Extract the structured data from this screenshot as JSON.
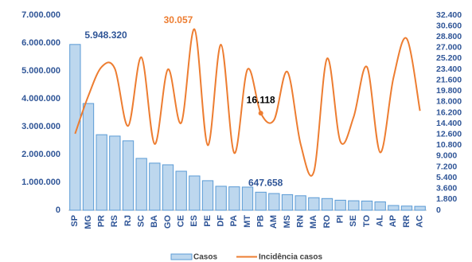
{
  "chart_data": {
    "type": "bar-line",
    "categories": [
      "SP",
      "MG",
      "PR",
      "RS",
      "RJ",
      "SC",
      "BA",
      "GO",
      "CE",
      "ES",
      "PE",
      "DF",
      "PA",
      "MT",
      "PB",
      "AM",
      "MS",
      "RN",
      "MA",
      "RO",
      "PI",
      "SE",
      "TO",
      "AL",
      "AP",
      "RR",
      "AC"
    ],
    "series": [
      {
        "name": "Casos",
        "type": "bar",
        "color": "#bdd7ee",
        "edgecolor": "#5b9bd5",
        "axis": "y",
        "values": [
          5948320,
          3830000,
          2710000,
          2660000,
          2490000,
          1860000,
          1690000,
          1630000,
          1400000,
          1230000,
          1060000,
          860000,
          840000,
          830000,
          647658,
          600000,
          560000,
          520000,
          450000,
          420000,
          360000,
          340000,
          330000,
          300000,
          170000,
          150000,
          140000
        ],
        "value_labels": [
          "5.948.320",
          null,
          null,
          null,
          null,
          null,
          null,
          null,
          null,
          null,
          null,
          null,
          null,
          null,
          "647.658",
          null,
          null,
          null,
          null,
          null,
          null,
          null,
          null,
          null,
          null,
          null,
          null
        ]
      },
      {
        "name": "Incidência casos",
        "type": "line",
        "color": "#ed7d31",
        "axis": "y2",
        "values": [
          12700,
          19000,
          23800,
          23500,
          14000,
          25400,
          11000,
          23400,
          14500,
          30057,
          10800,
          27500,
          9500,
          23400,
          16118,
          15000,
          23000,
          11000,
          6400,
          25200,
          11400,
          15500,
          23800,
          9600,
          22000,
          28500,
          16500
        ],
        "value_labels": [
          null,
          null,
          null,
          null,
          null,
          null,
          null,
          null,
          null,
          "30.057",
          null,
          null,
          null,
          null,
          "16.118",
          null,
          null,
          null,
          null,
          null,
          null,
          null,
          null,
          null,
          null,
          null,
          null
        ]
      }
    ],
    "ylim": [
      0,
      7000000
    ],
    "yticks": [
      0,
      {
        "value": 1000000,
        "label": "1.000.000"
      },
      {
        "value": 2000000,
        "label": "2.000.000"
      },
      {
        "value": 3000000,
        "label": "3.000.000"
      },
      {
        "value": 4000000,
        "label": "4.000.000"
      },
      {
        "value": 5000000,
        "label": "5.000.000"
      },
      {
        "value": 6000000,
        "label": "6.000.000"
      },
      {
        "value": 7000000,
        "label": "7.000.000"
      }
    ],
    "y2lim": [
      0,
      32400
    ],
    "y2ticks": [
      0,
      {
        "value": 1800,
        "label": "1.800"
      },
      {
        "value": 3600,
        "label": "3.600"
      },
      {
        "value": 5400,
        "label": "5.400"
      },
      {
        "value": 7200,
        "label": "7.200"
      },
      {
        "value": 9000,
        "label": "9.000"
      },
      {
        "value": 10800,
        "label": "10.800"
      },
      {
        "value": 12600,
        "label": "12.600"
      },
      {
        "value": 14400,
        "label": "14.400"
      },
      {
        "value": 16200,
        "label": "16.200"
      },
      {
        "value": 18000,
        "label": "18.000"
      },
      {
        "value": 19800,
        "label": "19.800"
      },
      {
        "value": 21600,
        "label": "21.600"
      },
      {
        "value": 23400,
        "label": "23.400"
      },
      {
        "value": 25200,
        "label": "25.200"
      },
      {
        "value": 27000,
        "label": "27.000"
      },
      {
        "value": 28800,
        "label": "28.800"
      },
      {
        "value": 30600,
        "label": "30.600"
      },
      {
        "value": 32400,
        "label": "32.400"
      }
    ],
    "grid": false,
    "legend": "bottom"
  }
}
